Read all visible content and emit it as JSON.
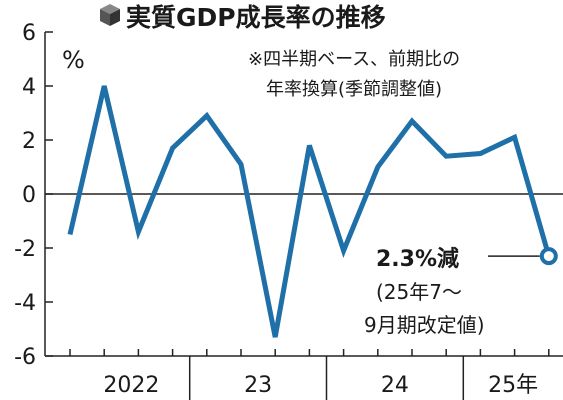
{
  "title": "実質GDP成長率の推移",
  "subtitle_lines": [
    "※四半期ベース、前期比の",
    "年率換算(季節調整値)"
  ],
  "unit": "%",
  "colors": {
    "line": "#1f6fa8",
    "axis": "#222222",
    "icon": "#555555"
  },
  "annotation": {
    "main": "2.3%減",
    "sub_lines": [
      "(25年7〜",
      "9月期改定値)"
    ]
  },
  "chart_data": {
    "type": "line",
    "title": "実質GDP成長率の推移",
    "ylabel": "%",
    "ylim": [
      -6,
      6
    ],
    "y_ticks": [
      6,
      4,
      2,
      0,
      -2,
      -4,
      -6
    ],
    "grid": "zero-line only",
    "x_groups": [
      {
        "label": "2022",
        "quarters": 4
      },
      {
        "label": "23",
        "quarters": 4
      },
      {
        "label": "24",
        "quarters": 4
      },
      {
        "label": "25年",
        "quarters": 3
      }
    ],
    "x": [
      "2022Q1",
      "2022Q2",
      "2022Q3",
      "2022Q4",
      "2023Q1",
      "2023Q2",
      "2023Q3",
      "2023Q4",
      "2024Q1",
      "2024Q2",
      "2024Q3",
      "2024Q4",
      "2025Q1",
      "2025Q2",
      "2025Q3"
    ],
    "series": [
      {
        "values": [
          -1.5,
          4.0,
          -1.4,
          1.7,
          2.9,
          1.1,
          -5.3,
          1.8,
          -2.1,
          1.0,
          2.7,
          1.4,
          1.5,
          2.1,
          -2.3
        ]
      }
    ],
    "highlight_last_point": true
  }
}
